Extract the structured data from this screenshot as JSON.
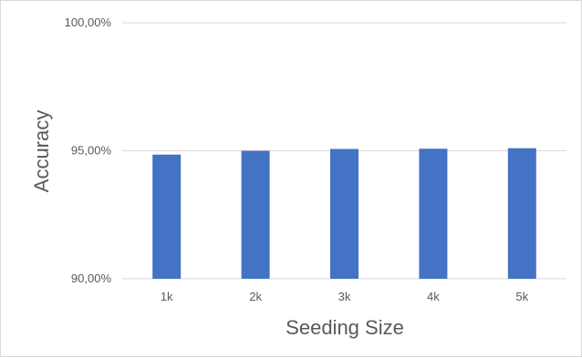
{
  "chart_data": {
    "type": "bar",
    "title": "",
    "xlabel": "Seeding Size",
    "ylabel": "Accuracy",
    "categories": [
      "1k",
      "2k",
      "3k",
      "4k",
      "5k"
    ],
    "series": [
      {
        "values": [
          94.85,
          95.0,
          95.07,
          95.08,
          95.1
        ],
        "color": "#4472c4"
      }
    ],
    "ylim": [
      90,
      100
    ],
    "yticks": [
      90,
      95,
      100
    ],
    "ytick_labels": [
      "90,00%",
      "95,00%",
      "100,00%"
    ],
    "grid": true,
    "legend": "none"
  }
}
